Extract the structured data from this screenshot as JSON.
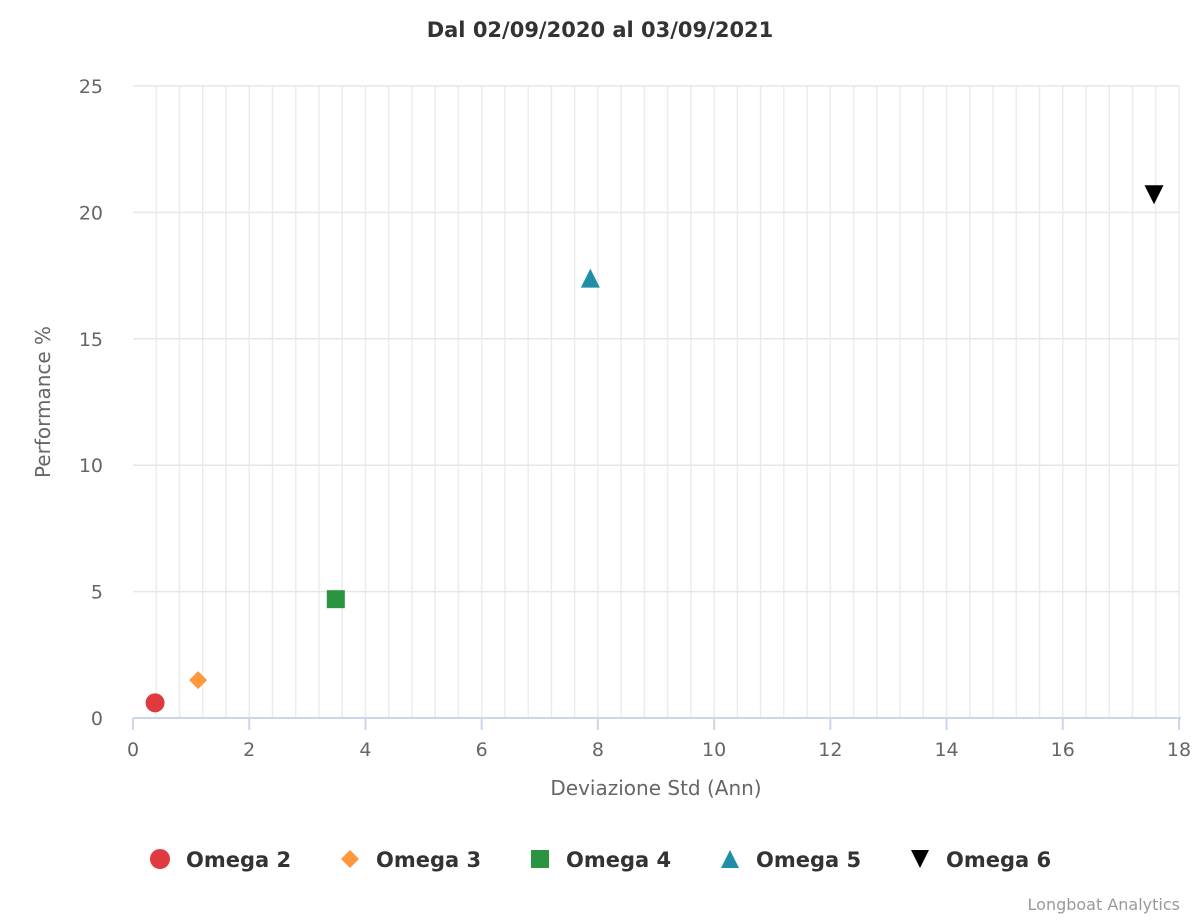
{
  "chart_data": {
    "type": "scatter",
    "title": "Dal 02/09/2020 al 03/09/2021",
    "xlabel": "Deviazione Std (Ann)",
    "ylabel": "Performance %",
    "xlim": [
      0,
      18
    ],
    "ylim": [
      0,
      25
    ],
    "xticks": [
      "0",
      "2",
      "4",
      "6",
      "8",
      "10",
      "12",
      "14",
      "16",
      "18"
    ],
    "yticks": [
      "0",
      "5",
      "10",
      "15",
      "20",
      "25"
    ],
    "grid": true,
    "legend_position": "bottom",
    "series": [
      {
        "name": "Omega 2",
        "marker": "circle",
        "color": "#e03a3e",
        "x": 0.38,
        "y": 0.6
      },
      {
        "name": "Omega 3",
        "marker": "diamond",
        "color": "#ff983d",
        "x": 1.12,
        "y": 1.5
      },
      {
        "name": "Omega 4",
        "marker": "square",
        "color": "#2b9441",
        "x": 3.49,
        "y": 4.7
      },
      {
        "name": "Omega 5",
        "marker": "triangle",
        "color": "#1f8fa8",
        "x": 7.87,
        "y": 17.4
      },
      {
        "name": "Omega 6",
        "marker": "triangle-down",
        "color": "#000000",
        "x": 17.57,
        "y": 20.7
      }
    ],
    "credits": "Longboat Analytics"
  }
}
